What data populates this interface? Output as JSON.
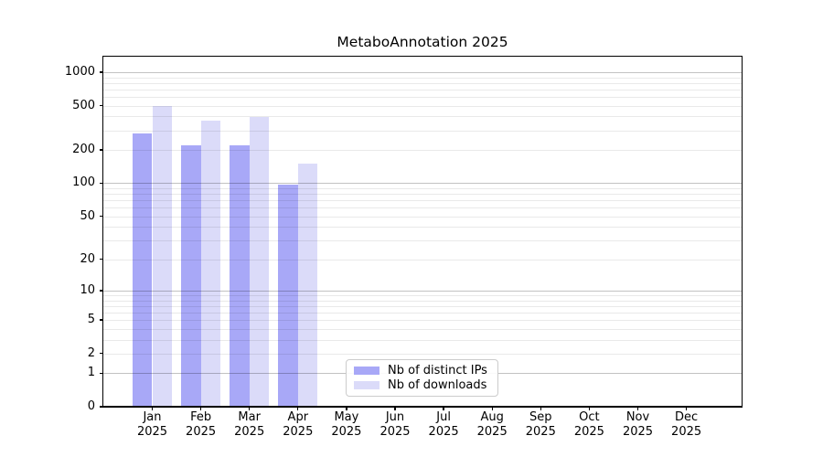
{
  "title": "MetaboAnnotation 2025",
  "chart_data": {
    "type": "bar",
    "title": "MetaboAnnotation 2025",
    "categories": [
      {
        "month": "Jan",
        "year": "2025"
      },
      {
        "month": "Feb",
        "year": "2025"
      },
      {
        "month": "Mar",
        "year": "2025"
      },
      {
        "month": "Apr",
        "year": "2025"
      },
      {
        "month": "May",
        "year": "2025"
      },
      {
        "month": "Jun",
        "year": "2025"
      },
      {
        "month": "Jul",
        "year": "2025"
      },
      {
        "month": "Aug",
        "year": "2025"
      },
      {
        "month": "Sep",
        "year": "2025"
      },
      {
        "month": "Oct",
        "year": "2025"
      },
      {
        "month": "Nov",
        "year": "2025"
      },
      {
        "month": "Dec",
        "year": "2025"
      }
    ],
    "series": [
      {
        "name": "Nb of distinct IPs",
        "color": "#a8a8f7",
        "values": [
          280,
          222,
          219,
          97,
          null,
          null,
          null,
          null,
          null,
          null,
          null,
          null
        ]
      },
      {
        "name": "Nb of downloads",
        "color": "#dbdbf9",
        "values": [
          500,
          366,
          394,
          150,
          null,
          null,
          null,
          null,
          null,
          null,
          null,
          null
        ]
      }
    ],
    "yscale": "log1p",
    "ylim": [
      0,
      1380
    ],
    "yticks": {
      "values": [
        0,
        1,
        2,
        5,
        10,
        20,
        50,
        100,
        200,
        500,
        1000
      ],
      "labels": [
        "0",
        "1",
        "2",
        "5",
        "10",
        "20",
        "50",
        "100",
        "200",
        "500",
        "1000"
      ]
    },
    "grid": "both-horizontal",
    "grid_major_color": "#c3c3c3",
    "grid_minor_color": "#e9e9e9",
    "legend_position": "lower center"
  },
  "legend": {
    "items": [
      {
        "label": "Nb of distinct IPs",
        "color": "#a8a8f7"
      },
      {
        "label": "Nb of downloads",
        "color": "#dbdbf9"
      }
    ]
  }
}
